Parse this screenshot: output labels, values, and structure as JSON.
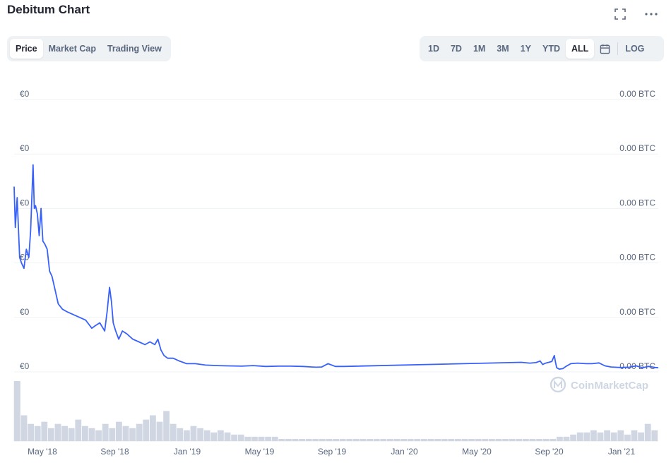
{
  "header": {
    "title": "Debitum Chart"
  },
  "icons": {
    "fullscreen": "fullscreen-icon",
    "more": "more-icon",
    "calendar": "calendar-icon"
  },
  "tabs": [
    {
      "label": "Price",
      "active": true
    },
    {
      "label": "Market Cap",
      "active": false
    },
    {
      "label": "Trading View",
      "active": false
    }
  ],
  "ranges": [
    {
      "label": "1D",
      "active": false
    },
    {
      "label": "7D",
      "active": false
    },
    {
      "label": "1M",
      "active": false
    },
    {
      "label": "3M",
      "active": false
    },
    {
      "label": "1Y",
      "active": false
    },
    {
      "label": "YTD",
      "active": false
    },
    {
      "label": "ALL",
      "active": true
    }
  ],
  "log_label": "LOG",
  "watermark": "CoinMarketCap",
  "colors": {
    "line": "#3861fb",
    "grid": "#eff2f5",
    "axis_text": "#58667e",
    "volume": "#d0d6e2"
  },
  "chart_data": {
    "type": "line",
    "left_axis_labels": [
      "€0",
      "€0",
      "€0",
      "€0",
      "€0",
      "€0"
    ],
    "right_axis_labels": [
      "0.00 BTC",
      "0.00 BTC",
      "0.00 BTC",
      "0.00 BTC",
      "0.00 BTC",
      "0.00 BTC"
    ],
    "x_tick_labels": [
      "May '18",
      "Sep '18",
      "Jan '19",
      "May '19",
      "Sep '19",
      "Jan '20",
      "May '20",
      "Sep '20",
      "Jan '21"
    ],
    "x_range": [
      "2018-03-25",
      "2021-02-10"
    ],
    "y_range": [
      0,
      100
    ],
    "grid": true,
    "series": [
      {
        "x": [
          "2018-03-25",
          "2018-03-27",
          "2018-03-30",
          "2018-04-03",
          "2018-04-06",
          "2018-04-10",
          "2018-04-14",
          "2018-04-18",
          "2018-04-21",
          "2018-04-25",
          "2018-04-27",
          "2018-04-29",
          "2018-05-02",
          "2018-05-05",
          "2018-05-08",
          "2018-05-11",
          "2018-05-14",
          "2018-05-18",
          "2018-05-22",
          "2018-05-26",
          "2018-05-30",
          "2018-06-05",
          "2018-06-12",
          "2018-06-20",
          "2018-06-30",
          "2018-07-10",
          "2018-07-20",
          "2018-07-30",
          "2018-08-05",
          "2018-08-12",
          "2018-08-20",
          "2018-08-24",
          "2018-08-28",
          "2018-08-31",
          "2018-09-03",
          "2018-09-07",
          "2018-09-12",
          "2018-09-18",
          "2018-09-25",
          "2018-10-05",
          "2018-10-15",
          "2018-10-25",
          "2018-11-02",
          "2018-11-10",
          "2018-11-15",
          "2018-11-20",
          "2018-11-25",
          "2018-12-01",
          "2018-12-10",
          "2018-12-20",
          "2019-01-01",
          "2019-01-15",
          "2019-02-01",
          "2019-02-20",
          "2019-03-10",
          "2019-04-01",
          "2019-04-20",
          "2019-05-10",
          "2019-06-01",
          "2019-06-20",
          "2019-07-10",
          "2019-07-25",
          "2019-08-01",
          "2019-08-10",
          "2019-08-20",
          "2019-09-01",
          "2019-09-15",
          "2020-07-01",
          "2020-07-15",
          "2020-07-25",
          "2020-08-01",
          "2020-08-05",
          "2020-08-10",
          "2020-08-15",
          "2020-08-20",
          "2020-08-24",
          "2020-08-26",
          "2020-08-28",
          "2020-09-01",
          "2020-09-07",
          "2020-09-12",
          "2020-09-20",
          "2020-10-01",
          "2020-10-15",
          "2020-10-25",
          "2020-11-05",
          "2020-11-15",
          "2020-11-25",
          "2020-12-10",
          "2020-12-25",
          "2021-01-05",
          "2021-01-15",
          "2021-01-25",
          "2021-02-05",
          "2021-02-10"
        ],
        "y": [
          68,
          53,
          64,
          42,
          40,
          38,
          45,
          42,
          52,
          76,
          60,
          61,
          58,
          50,
          60,
          48,
          47,
          45,
          37,
          35,
          31,
          25,
          23,
          22,
          21,
          20,
          19,
          16,
          17,
          18,
          15,
          22,
          31,
          26,
          18,
          15,
          12,
          15,
          14,
          12,
          11,
          10,
          11,
          10,
          12,
          8,
          6,
          5,
          5,
          4,
          3,
          3,
          2.5,
          2.3,
          2.2,
          2.1,
          2.3,
          2.0,
          2.1,
          2.1,
          2.0,
          1.8,
          1.7,
          1.8,
          3.0,
          2.0,
          2.0,
          3.5,
          3.2,
          3.4,
          4.0,
          2.7,
          3.2,
          3.5,
          3.8,
          6,
          3.5,
          1.5,
          1.0,
          1.2,
          2,
          3,
          3.2,
          3.0,
          3.0,
          3.3,
          2.2,
          1.8,
          1.6,
          1.7,
          2.2,
          1.5,
          2.0,
          1.6,
          1.5
        ]
      }
    ],
    "volume": [
      28,
      12,
      8,
      7,
      9,
      6,
      8,
      7,
      6,
      10,
      7,
      6,
      5,
      8,
      6,
      9,
      7,
      6,
      8,
      10,
      12,
      9,
      14,
      8,
      6,
      5,
      7,
      6,
      5,
      4,
      5,
      4,
      3,
      3,
      2,
      2,
      2,
      2,
      2,
      1,
      1,
      1,
      1,
      1,
      1,
      1,
      1,
      1,
      1,
      1,
      1,
      1,
      1,
      1,
      1,
      1,
      1,
      1,
      1,
      1,
      1,
      1,
      1,
      1,
      1,
      1,
      1,
      1,
      1,
      1,
      1,
      1,
      1,
      1,
      1,
      1,
      1,
      1,
      1,
      1,
      2,
      2,
      3,
      4,
      4,
      5,
      4,
      5,
      4,
      5,
      3,
      5,
      4,
      8,
      5
    ]
  }
}
